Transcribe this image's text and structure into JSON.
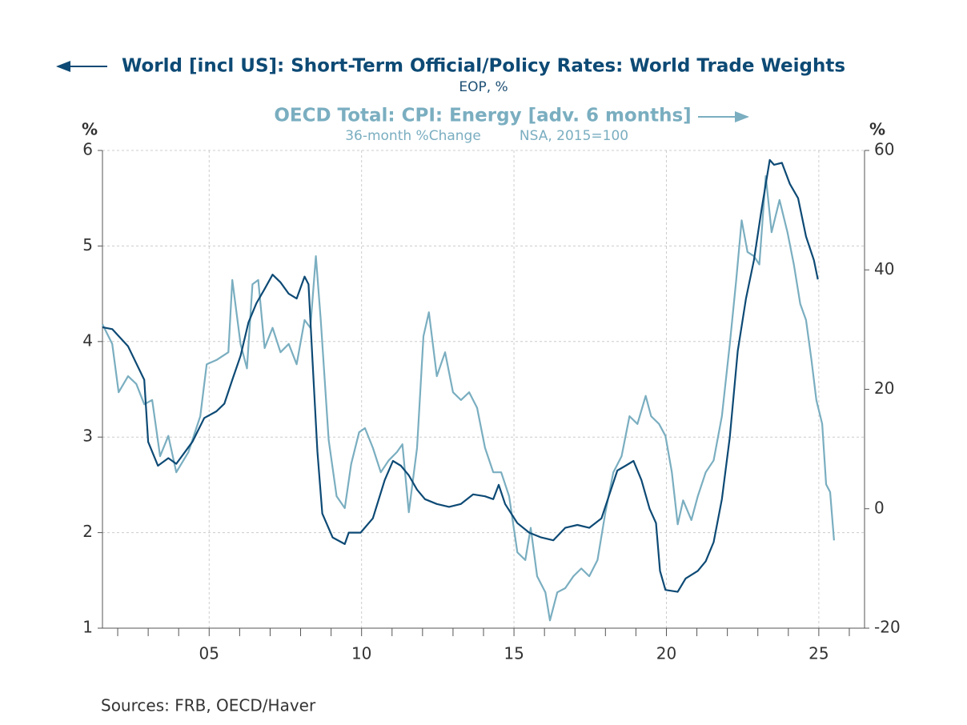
{
  "chart_data": {
    "type": "line",
    "series": [
      {
        "name": "World [incl US]: Short-Term Official/Policy Rates: World Trade Weights",
        "units": [
          "EOP, %"
        ],
        "color": "#0d4a75",
        "axis": "y",
        "x": [
          2001.5,
          2001.82,
          2002.34,
          2002.87,
          2003.0,
          2003.32,
          2003.66,
          2003.92,
          2004.45,
          2004.84,
          2005.24,
          2005.5,
          2005.76,
          2006.03,
          2006.29,
          2006.55,
          2006.82,
          2007.08,
          2007.34,
          2007.61,
          2007.87,
          2008.13,
          2008.26,
          2008.39,
          2008.55,
          2008.71,
          2009.05,
          2009.45,
          2009.58,
          2009.97,
          2010.37,
          2010.76,
          2011.03,
          2011.29,
          2011.55,
          2011.82,
          2012.08,
          2012.47,
          2012.87,
          2013.26,
          2013.66,
          2014.05,
          2014.32,
          2014.5,
          2014.71,
          2015.11,
          2015.5,
          2015.89,
          2016.29,
          2016.68,
          2017.08,
          2017.47,
          2017.87,
          2018.13,
          2018.39,
          2018.66,
          2018.92,
          2019.18,
          2019.45,
          2019.66,
          2019.79,
          2019.97,
          2020.37,
          2020.63,
          2021.03,
          2021.29,
          2021.55,
          2021.82,
          2022.08,
          2022.34,
          2022.61,
          2022.87,
          2023.13,
          2023.39,
          2023.53,
          2023.79,
          2024.05,
          2024.32,
          2024.58,
          2024.84,
          2024.97
        ],
        "values": [
          4.15,
          4.13,
          3.95,
          3.6,
          2.95,
          2.7,
          2.78,
          2.72,
          2.95,
          3.2,
          3.27,
          3.35,
          3.6,
          3.85,
          4.2,
          4.4,
          4.55,
          4.7,
          4.62,
          4.5,
          4.45,
          4.68,
          4.6,
          3.8,
          2.85,
          2.2,
          1.95,
          1.88,
          2.0,
          2.0,
          2.15,
          2.55,
          2.75,
          2.7,
          2.6,
          2.45,
          2.35,
          2.3,
          2.27,
          2.3,
          2.4,
          2.38,
          2.35,
          2.5,
          2.3,
          2.1,
          2.0,
          1.95,
          1.92,
          2.05,
          2.08,
          2.05,
          2.15,
          2.4,
          2.65,
          2.7,
          2.75,
          2.55,
          2.25,
          2.1,
          1.6,
          1.4,
          1.38,
          1.52,
          1.6,
          1.7,
          1.9,
          2.35,
          3.0,
          3.9,
          4.45,
          4.85,
          5.4,
          5.9,
          5.85,
          5.87,
          5.65,
          5.5,
          5.1,
          4.85,
          4.65
        ]
      },
      {
        "name": "OECD Total: CPI: Energy [adv. 6 months]",
        "units": [
          "36-month %Change",
          "NSA, 2015=100"
        ],
        "color": "#7aaec0",
        "axis": "y2",
        "x": [
          2001.5,
          2001.82,
          2002.03,
          2002.34,
          2002.61,
          2002.87,
          2003.13,
          2003.39,
          2003.66,
          2003.92,
          2004.32,
          2004.71,
          2004.92,
          2005.24,
          2005.63,
          2005.76,
          2006.03,
          2006.24,
          2006.42,
          2006.61,
          2006.82,
          2007.08,
          2007.34,
          2007.61,
          2007.87,
          2008.13,
          2008.32,
          2008.5,
          2008.66,
          2008.92,
          2009.18,
          2009.45,
          2009.66,
          2009.92,
          2010.11,
          2010.37,
          2010.63,
          2010.89,
          2011.16,
          2011.34,
          2011.55,
          2011.82,
          2012.03,
          2012.21,
          2012.47,
          2012.74,
          2013.0,
          2013.26,
          2013.53,
          2013.79,
          2014.05,
          2014.32,
          2014.58,
          2014.84,
          2015.11,
          2015.37,
          2015.55,
          2015.76,
          2016.03,
          2016.18,
          2016.42,
          2016.68,
          2016.95,
          2017.21,
          2017.47,
          2017.74,
          2018.0,
          2018.26,
          2018.53,
          2018.79,
          2019.05,
          2019.32,
          2019.5,
          2019.76,
          2019.97,
          2020.18,
          2020.37,
          2020.55,
          2020.82,
          2021.03,
          2021.29,
          2021.55,
          2021.82,
          2022.08,
          2022.29,
          2022.47,
          2022.66,
          2022.87,
          2023.05,
          2023.26,
          2023.45,
          2023.71,
          2023.97,
          2024.18,
          2024.39,
          2024.58,
          2024.76,
          2024.92,
          2025.11,
          2025.24,
          2025.37,
          2025.5
        ],
        "values": [
          30.9,
          27.6,
          19.5,
          22.2,
          20.9,
          17.5,
          18.2,
          8.8,
          12.2,
          6.1,
          9.5,
          15.5,
          24.2,
          24.9,
          26.2,
          38.3,
          27.6,
          23.5,
          37.6,
          38.3,
          26.9,
          30.3,
          26.2,
          27.6,
          24.2,
          31.6,
          30.3,
          42.3,
          31.6,
          11.5,
          2.1,
          0.1,
          7.5,
          12.8,
          13.5,
          10.2,
          6.1,
          8.1,
          9.5,
          10.8,
          -0.6,
          10.2,
          28.9,
          32.9,
          22.2,
          26.2,
          19.5,
          18.2,
          19.5,
          16.9,
          10.2,
          6.1,
          6.1,
          2.1,
          -7.3,
          -8.6,
          -3.2,
          -11.3,
          -14.0,
          -18.7,
          -14.0,
          -13.3,
          -11.3,
          -10.0,
          -11.3,
          -8.6,
          -0.6,
          6.1,
          8.8,
          15.5,
          14.2,
          18.9,
          15.5,
          14.2,
          12.2,
          6.1,
          -2.6,
          1.4,
          -1.9,
          2.1,
          6.1,
          8.1,
          15.5,
          27.6,
          38.3,
          48.3,
          43.0,
          42.3,
          40.9,
          55.7,
          46.3,
          51.7,
          46.3,
          40.9,
          34.3,
          31.6,
          24.9,
          18.2,
          14.2,
          4.1,
          2.8,
          -5.3
        ]
      }
    ],
    "xlim": [
      2001.5,
      2026.5
    ],
    "xticks": [
      {
        "value": 2005,
        "label": "05"
      },
      {
        "value": 2010,
        "label": "10"
      },
      {
        "value": 2015,
        "label": "15"
      },
      {
        "value": 2020,
        "label": "20"
      },
      {
        "value": 2025,
        "label": "25"
      }
    ],
    "xminor_ticks": [
      2002,
      2003,
      2004,
      2005,
      2006,
      2007,
      2008,
      2009,
      2010,
      2011,
      2012,
      2013,
      2014,
      2015,
      2016,
      2017,
      2018,
      2019,
      2020,
      2021,
      2022,
      2023,
      2024,
      2025,
      2026
    ],
    "ylim": [
      1,
      6
    ],
    "yticks": [
      1,
      2,
      3,
      4,
      5,
      6
    ],
    "y2lim": [
      -20,
      60
    ],
    "y2ticks": [
      -20,
      0,
      20,
      40,
      60
    ],
    "y_label": "%",
    "y2_label": "%",
    "grid": true,
    "source": "Sources:  FRB, OECD/Haver"
  }
}
